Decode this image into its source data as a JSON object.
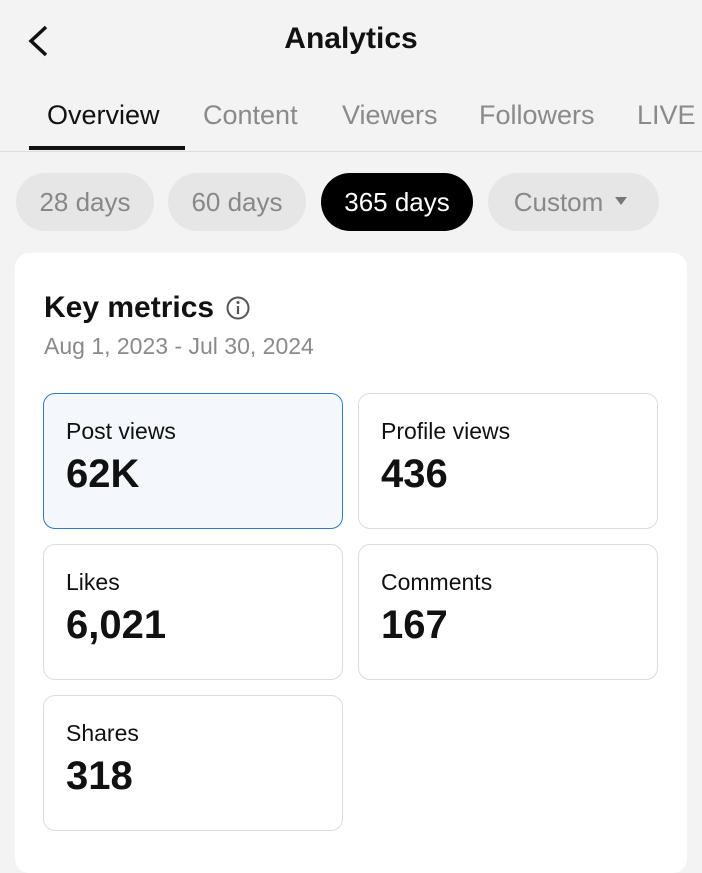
{
  "header": {
    "title": "Analytics"
  },
  "tabs": [
    "Overview",
    "Content",
    "Viewers",
    "Followers",
    "LIVE"
  ],
  "ranges": [
    "28 days",
    "60 days",
    "365 days",
    "Custom"
  ],
  "card": {
    "title": "Key metrics",
    "date_range": "Aug 1, 2023 - Jul 30, 2024",
    "metrics": [
      {
        "label": "Post views",
        "value": "62K"
      },
      {
        "label": "Profile views",
        "value": "436"
      },
      {
        "label": "Likes",
        "value": "6,021"
      },
      {
        "label": "Comments",
        "value": "167"
      },
      {
        "label": "Shares",
        "value": "318"
      }
    ]
  }
}
